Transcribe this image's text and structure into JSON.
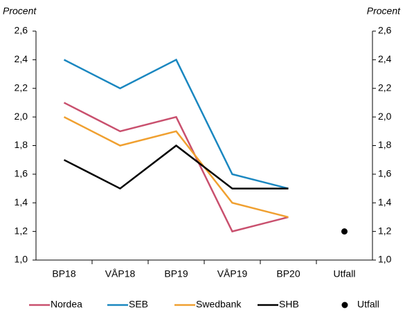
{
  "chart_data": {
    "type": "line",
    "ylabel": "Procent",
    "y2label": "Procent",
    "categories": [
      "BP18",
      "VÅP18",
      "BP19",
      "VÅP19",
      "BP20",
      "Utfall"
    ],
    "series": [
      {
        "name": "Nordea",
        "color": "#c9506e",
        "style": "line",
        "values": [
          2.1,
          1.9,
          2.0,
          1.2,
          1.3,
          null
        ]
      },
      {
        "name": "SEB",
        "color": "#1a87c0",
        "style": "line",
        "values": [
          2.4,
          2.2,
          2.4,
          1.6,
          1.5,
          null
        ]
      },
      {
        "name": "Swedbank",
        "color": "#f0a030",
        "style": "line",
        "values": [
          2.0,
          1.8,
          1.9,
          1.4,
          1.3,
          null
        ]
      },
      {
        "name": "SHB",
        "color": "#000000",
        "style": "line",
        "values": [
          1.7,
          1.5,
          1.8,
          1.5,
          1.5,
          null
        ]
      },
      {
        "name": "Utfall",
        "color": "#000000",
        "style": "dot",
        "values": [
          null,
          null,
          null,
          null,
          null,
          1.2
        ]
      }
    ],
    "ylim": [
      1.0,
      2.6
    ],
    "yticks": [
      {
        "value": 1.0,
        "label": "1,0"
      },
      {
        "value": 1.2,
        "label": "1,2"
      },
      {
        "value": 1.4,
        "label": "1,4"
      },
      {
        "value": 1.6,
        "label": "1,6"
      },
      {
        "value": 1.8,
        "label": "1,8"
      },
      {
        "value": 2.0,
        "label": "2,0"
      },
      {
        "value": 2.2,
        "label": "2,2"
      },
      {
        "value": 2.4,
        "label": "2,4"
      },
      {
        "value": 2.6,
        "label": "2,6"
      }
    ],
    "y2lim": [
      1.0,
      2.6
    ],
    "y2ticks": [
      {
        "value": 1.0,
        "label": "1,0"
      },
      {
        "value": 1.2,
        "label": "1,2"
      },
      {
        "value": 1.4,
        "label": "1,4"
      },
      {
        "value": 1.6,
        "label": "1,6"
      },
      {
        "value": 1.8,
        "label": "1,8"
      },
      {
        "value": 2.0,
        "label": "2,0"
      },
      {
        "value": 2.2,
        "label": "2,2"
      },
      {
        "value": 2.4,
        "label": "2,4"
      },
      {
        "value": 2.6,
        "label": "2,6"
      }
    ],
    "legend": "bottom"
  }
}
